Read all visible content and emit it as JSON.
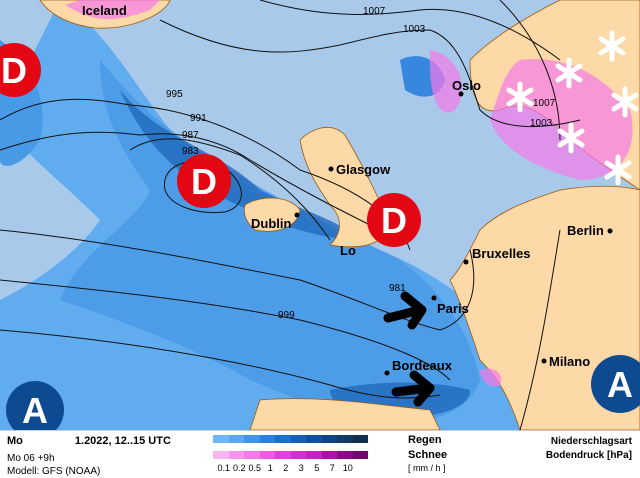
{
  "map": {
    "cities": {
      "iceland": "Iceland",
      "glasgow": "Glasgow",
      "dublin": "Dublin",
      "london": "Lo",
      "bruxelles": "Bruxelles",
      "berlin": "Berlin",
      "paris": "Paris",
      "bordeaux": "Bordeaux",
      "milano": "Milano",
      "oslo": "Oslo"
    },
    "isobar_labels": [
      "1007",
      "1003",
      "995",
      "991",
      "987",
      "983",
      "981",
      "999",
      "1007",
      "1003"
    ],
    "low_label": "D",
    "high_label": "A",
    "colors": {
      "sea": "#a9c9ea",
      "land": "#fcd9a6",
      "low": "#e30613",
      "high": "#0d4a8f",
      "border": "#a0580f"
    }
  },
  "legend": {
    "title_start": "Mo",
    "title_end": "1.2022, 12..15 UTC",
    "run": "Mo 06 +9h",
    "model": "Modell: GFS (NOAA)",
    "rain_label": "Regen",
    "snow_label": "Schnee",
    "unit": "[ mm / h ]",
    "ticks": [
      "0.1",
      "0.2",
      "0.5",
      "1",
      "2",
      "3",
      "5",
      "7",
      "10"
    ],
    "rain_colors": [
      "#6fb6f6",
      "#5aa8f0",
      "#3e94e6",
      "#2a80dc",
      "#1a6ecf",
      "#1460b8",
      "#0f50a0",
      "#0d4485",
      "#123a66",
      "#132e4e"
    ],
    "snow_colors": [
      "#f9b4f2",
      "#f795ee",
      "#f57ae9",
      "#f05ae2",
      "#e53cdc",
      "#d42ed0",
      "#c81fc0",
      "#b010a8",
      "#8c0a88",
      "#6e0a6c"
    ],
    "type_label": "Niederschlagsart",
    "pressure_label": "Bodendruck [hPa]"
  }
}
